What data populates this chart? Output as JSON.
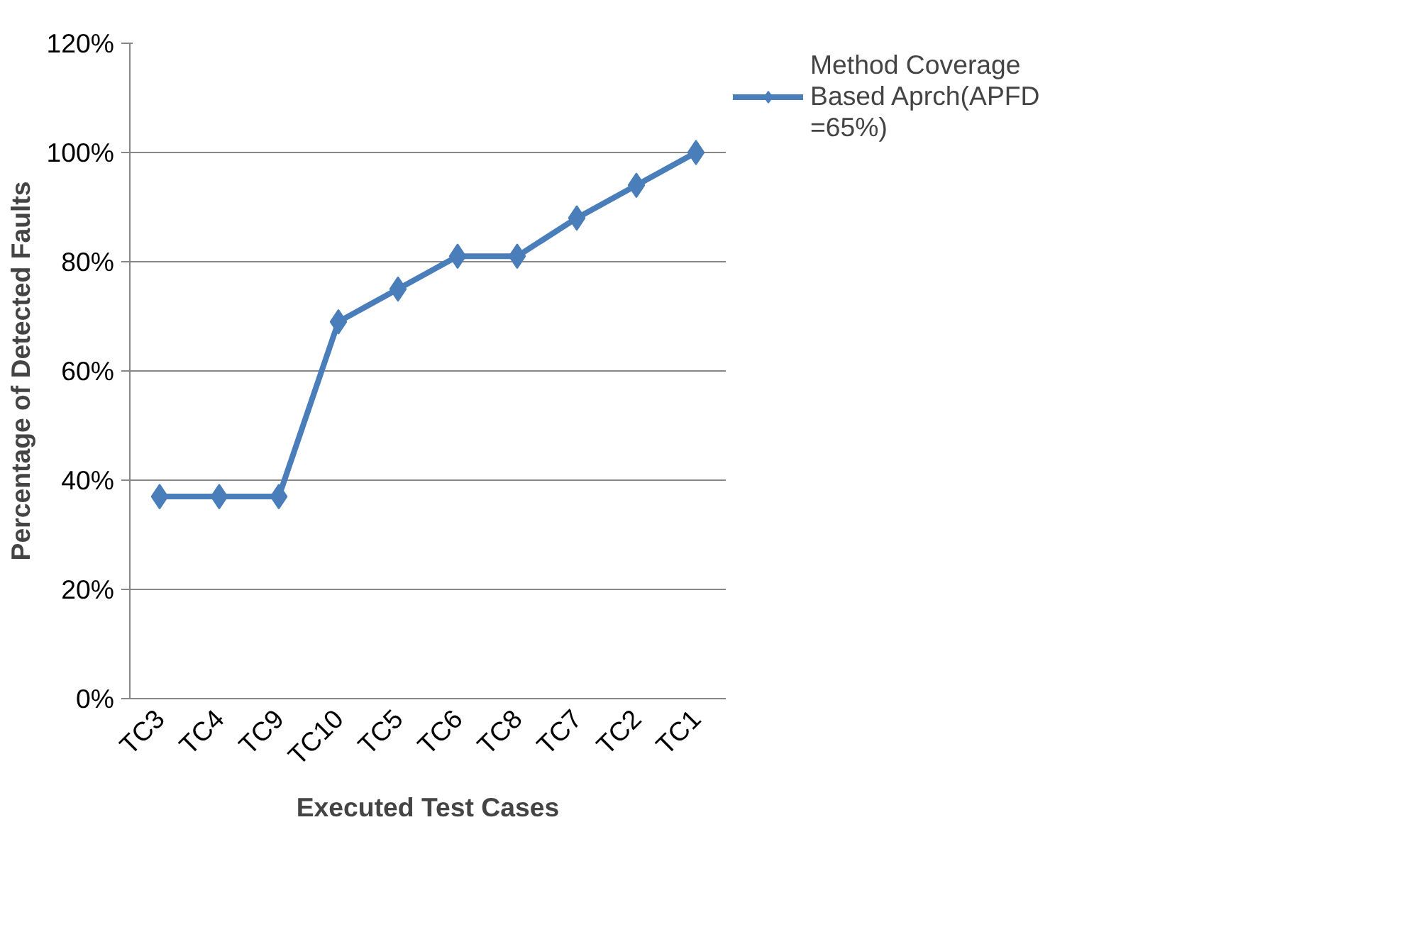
{
  "chart_data": {
    "type": "line",
    "xlabel": "Executed Test Cases",
    "ylabel": "Percentage of Detected Faults",
    "categories": [
      "TC3",
      "TC4",
      "TC9",
      "TC10",
      "TC5",
      "TC6",
      "TC8",
      "TC7",
      "TC2",
      "TC1"
    ],
    "series": [
      {
        "name": "Method Coverage Based Aprch(APFD =65%)",
        "color": "#4a7ebb",
        "values": [
          37,
          37,
          37,
          69,
          75,
          81,
          81,
          88,
          94,
          100
        ]
      }
    ],
    "ylim": [
      0,
      120
    ],
    "yticks": [
      {
        "value": 0,
        "label": "0%"
      },
      {
        "value": 20,
        "label": "20%"
      },
      {
        "value": 40,
        "label": "40%"
      },
      {
        "value": 60,
        "label": "60%"
      },
      {
        "value": 80,
        "label": "80%"
      },
      {
        "value": 100,
        "label": "100%"
      },
      {
        "value": 120,
        "label": "120%"
      }
    ],
    "grid": "y",
    "legend": "right",
    "marker": "diamond",
    "line_style": "solid"
  }
}
